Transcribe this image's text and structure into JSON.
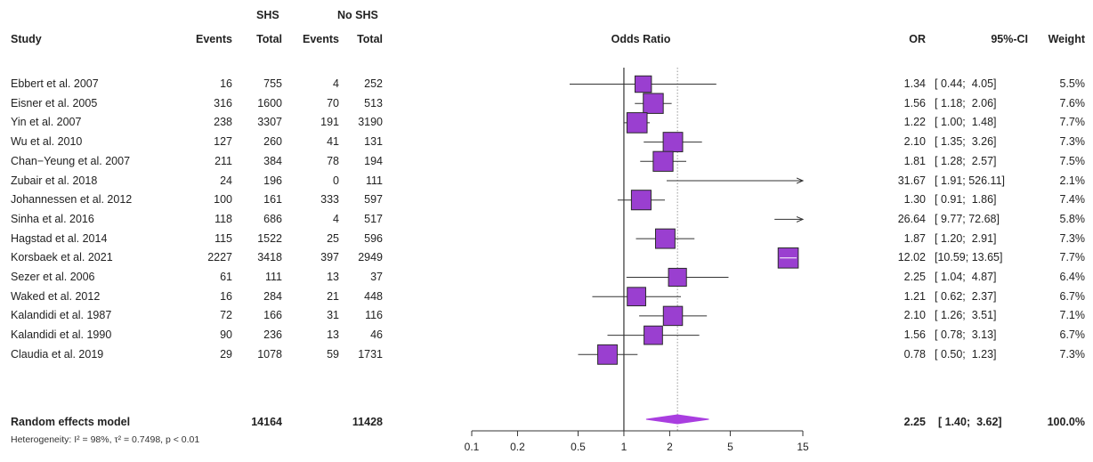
{
  "headers": {
    "study": "Study",
    "shs_group": "SHS",
    "noshs_group": "No SHS",
    "events1": "Events",
    "total1": "Total",
    "events2": "Events",
    "total2": "Total",
    "odds_ratio": "Odds Ratio",
    "or": "OR",
    "ci": "95%-CI",
    "weight": "Weight"
  },
  "studies": [
    {
      "name": "Ebbert et al. 2007",
      "e1": "16",
      "t1": "755",
      "e2": "4",
      "t2": "252",
      "or_text": "1.34",
      "ci_text": "[ 0.44;  4.05]",
      "weight": "5.5%"
    },
    {
      "name": "Eisner et al. 2005",
      "e1": "316",
      "t1": "1600",
      "e2": "70",
      "t2": "513",
      "or_text": "1.56",
      "ci_text": "[ 1.18;  2.06]",
      "weight": "7.6%"
    },
    {
      "name": "Yin et al.  2007",
      "e1": "238",
      "t1": "3307",
      "e2": "191",
      "t2": "3190",
      "or_text": "1.22",
      "ci_text": "[ 1.00;  1.48]",
      "weight": "7.7%"
    },
    {
      "name": "Wu et al.  2010",
      "e1": "127",
      "t1": "260",
      "e2": "41",
      "t2": "131",
      "or_text": "2.10",
      "ci_text": "[ 1.35;  3.26]",
      "weight": "7.3%"
    },
    {
      "name": "Chan−Yeung et al. 2007",
      "e1": "211",
      "t1": "384",
      "e2": "78",
      "t2": "194",
      "or_text": "1.81",
      "ci_text": "[ 1.28;  2.57]",
      "weight": "7.5%"
    },
    {
      "name": "Zubair et al. 2018",
      "e1": "24",
      "t1": "196",
      "e2": "0",
      "t2": "111",
      "or_text": "31.67",
      "ci_text": "[ 1.91; 526.11]",
      "weight": "2.1%"
    },
    {
      "name": "Johannessen et al.  2012",
      "e1": "100",
      "t1": "161",
      "e2": "333",
      "t2": "597",
      "or_text": "1.30",
      "ci_text": "[ 0.91;  1.86]",
      "weight": "7.4%"
    },
    {
      "name": "Sinha et al. 2016",
      "e1": "118",
      "t1": "686",
      "e2": "4",
      "t2": "517",
      "or_text": "26.64",
      "ci_text": "[ 9.77; 72.68]",
      "weight": "5.8%"
    },
    {
      "name": "Hagstad et al. 2014",
      "e1": "115",
      "t1": "1522",
      "e2": "25",
      "t2": "596",
      "or_text": "1.87",
      "ci_text": "[ 1.20;  2.91]",
      "weight": "7.3%"
    },
    {
      "name": "Korsbaek et al. 2021",
      "e1": "2227",
      "t1": "3418",
      "e2": "397",
      "t2": "2949",
      "or_text": "12.02",
      "ci_text": "[10.59; 13.65]",
      "weight": "7.7%"
    },
    {
      "name": "Sezer et al. 2006",
      "e1": "61",
      "t1": "111",
      "e2": "13",
      "t2": "37",
      "or_text": "2.25",
      "ci_text": "[ 1.04;  4.87]",
      "weight": "6.4%"
    },
    {
      "name": "Waked et al. 2012",
      "e1": "16",
      "t1": "284",
      "e2": "21",
      "t2": "448",
      "or_text": "1.21",
      "ci_text": "[ 0.62;  2.37]",
      "weight": "6.7%"
    },
    {
      "name": "Kalandidi et al. 1987",
      "e1": "72",
      "t1": "166",
      "e2": "31",
      "t2": "116",
      "or_text": "2.10",
      "ci_text": "[ 1.26;  3.51]",
      "weight": "7.1%"
    },
    {
      "name": "Kalandidi et al. 1990",
      "e1": "90",
      "t1": "236",
      "e2": "13",
      "t2": "46",
      "or_text": "1.56",
      "ci_text": "[ 0.78;  3.13]",
      "weight": "6.7%"
    },
    {
      "name": "Claudia et al. 2019",
      "e1": "29",
      "t1": "1078",
      "e2": "59",
      "t2": "1731",
      "or_text": "0.78",
      "ci_text": "[ 0.50;  1.23]",
      "weight": "7.3%"
    }
  ],
  "summary": {
    "name": "Random effects model",
    "t1": "14164",
    "t2": "11428",
    "or_text": "2.25",
    "ci_text": "[ 1.40;  3.62]",
    "weight": "100.0%"
  },
  "heterogeneity": "Heterogeneity: I² = 98%, τ² = 0.7498, p < 0.01",
  "colors": {
    "box": "#9a3fd0",
    "box_border": "#2a2a2a",
    "diamond": "#a93ee0",
    "line": "#333333",
    "ref_line": "#999999"
  },
  "chart_data": {
    "type": "forest",
    "x_scale": "log",
    "xlabel": "Odds Ratio",
    "xlim": [
      0.1,
      15
    ],
    "x_ticks": [
      "0.1",
      "0.2",
      "0.5",
      "1",
      "2",
      "5",
      "15"
    ],
    "tick_values": [
      0.1,
      0.2,
      0.5,
      1,
      2,
      5,
      15
    ],
    "reference_line": 1,
    "summary_line": 2.25,
    "studies": [
      {
        "or": 1.34,
        "lo": 0.44,
        "hi": 4.05,
        "w": 5.5
      },
      {
        "or": 1.56,
        "lo": 1.18,
        "hi": 2.06,
        "w": 7.6
      },
      {
        "or": 1.22,
        "lo": 1.0,
        "hi": 1.48,
        "w": 7.7
      },
      {
        "or": 2.1,
        "lo": 1.35,
        "hi": 3.26,
        "w": 7.3
      },
      {
        "or": 1.81,
        "lo": 1.28,
        "hi": 2.57,
        "w": 7.5
      },
      {
        "or": 31.67,
        "lo": 1.91,
        "hi": 526.11,
        "w": 2.1
      },
      {
        "or": 1.3,
        "lo": 0.91,
        "hi": 1.86,
        "w": 7.4
      },
      {
        "or": 26.64,
        "lo": 9.77,
        "hi": 72.68,
        "w": 5.8
      },
      {
        "or": 1.87,
        "lo": 1.2,
        "hi": 2.91,
        "w": 7.3
      },
      {
        "or": 12.02,
        "lo": 10.59,
        "hi": 13.65,
        "w": 7.7
      },
      {
        "or": 2.25,
        "lo": 1.04,
        "hi": 4.87,
        "w": 6.4
      },
      {
        "or": 1.21,
        "lo": 0.62,
        "hi": 2.37,
        "w": 6.7
      },
      {
        "or": 2.1,
        "lo": 1.26,
        "hi": 3.51,
        "w": 7.1
      },
      {
        "or": 1.56,
        "lo": 0.78,
        "hi": 3.13,
        "w": 6.7
      },
      {
        "or": 0.78,
        "lo": 0.5,
        "hi": 1.23,
        "w": 7.3
      }
    ],
    "summary": {
      "or": 2.25,
      "lo": 1.4,
      "hi": 3.62
    }
  }
}
